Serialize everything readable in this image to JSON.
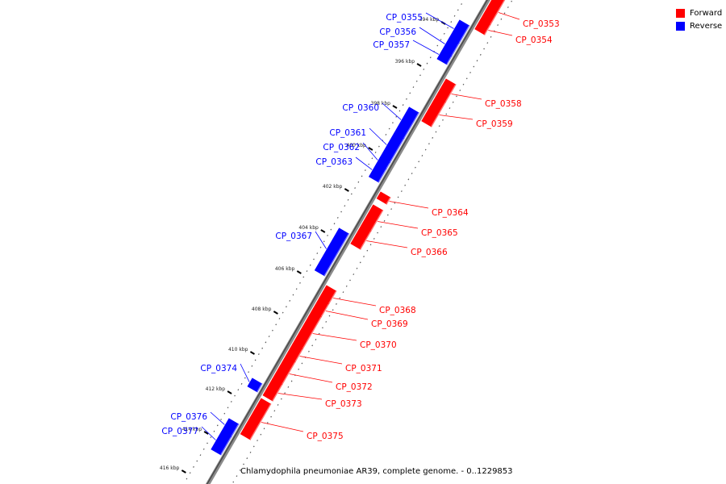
{
  "legend": {
    "forward_label": "Forward",
    "reverse_label": "Reverse",
    "forward_color": "#ff0000",
    "reverse_color": "#0000ff"
  },
  "caption": "Chlamydophila pneumoniae AR39, complete genome. - 0..1229853",
  "scale": {
    "unit": "kbp",
    "ticks": [
      394,
      396,
      398,
      400,
      402,
      404,
      406,
      408,
      410,
      412,
      414,
      416
    ]
  },
  "genes": [
    {
      "id": "CP_0353",
      "strand": "forward"
    },
    {
      "id": "CP_0354",
      "strand": "forward"
    },
    {
      "id": "CP_0355",
      "strand": "reverse"
    },
    {
      "id": "CP_0356",
      "strand": "reverse"
    },
    {
      "id": "CP_0357",
      "strand": "reverse"
    },
    {
      "id": "CP_0358",
      "strand": "forward"
    },
    {
      "id": "CP_0359",
      "strand": "forward"
    },
    {
      "id": "CP_0360",
      "strand": "reverse"
    },
    {
      "id": "CP_0361",
      "strand": "reverse"
    },
    {
      "id": "CP_0362",
      "strand": "reverse"
    },
    {
      "id": "CP_0363",
      "strand": "reverse"
    },
    {
      "id": "CP_0364",
      "strand": "forward"
    },
    {
      "id": "CP_0365",
      "strand": "forward"
    },
    {
      "id": "CP_0366",
      "strand": "forward"
    },
    {
      "id": "CP_0367",
      "strand": "reverse"
    },
    {
      "id": "CP_0368",
      "strand": "forward"
    },
    {
      "id": "CP_0369",
      "strand": "forward"
    },
    {
      "id": "CP_0370",
      "strand": "forward"
    },
    {
      "id": "CP_0371",
      "strand": "forward"
    },
    {
      "id": "CP_0372",
      "strand": "forward"
    },
    {
      "id": "CP_0373",
      "strand": "forward"
    },
    {
      "id": "CP_0374",
      "strand": "reverse"
    },
    {
      "id": "CP_0375",
      "strand": "forward"
    },
    {
      "id": "CP_0376",
      "strand": "reverse"
    },
    {
      "id": "CP_0377",
      "strand": "reverse"
    }
  ]
}
